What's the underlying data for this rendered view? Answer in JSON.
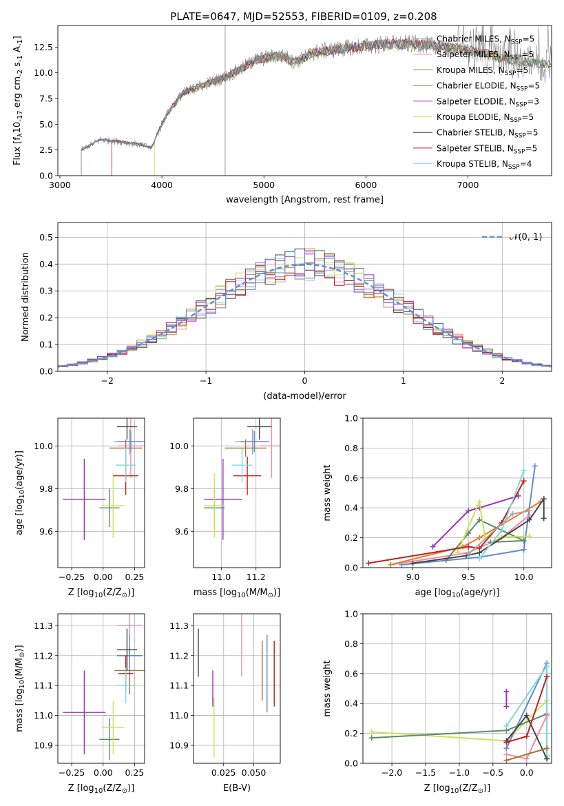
{
  "title": "PLATE=0647, MJD=52553, FIBERID=0109, z=0.208",
  "legend_models": [
    {
      "prefix": "Chabrier MILES, N",
      "n": "5",
      "color": "#a6a6a6"
    },
    {
      "prefix": "Salpeter MILES, N",
      "n": "5",
      "color": "#f48aa5"
    },
    {
      "prefix": "Kroupa MILES, N",
      "n": "5",
      "color": "#a8702a"
    },
    {
      "prefix": "Chabrier ELODIE, N",
      "n": "5",
      "color": "#5e8a66"
    },
    {
      "prefix": "Salpeter ELODIE, N",
      "n": "3",
      "color": "#9a2fc0"
    },
    {
      "prefix": "Kroupa ELODIE, N",
      "n": "5",
      "color": "#c8e455"
    },
    {
      "prefix": "Chabrier STELIB, N",
      "n": "5",
      "color": "#444444"
    },
    {
      "prefix": "Salpeter STELIB, N",
      "n": "5",
      "color": "#c02020"
    },
    {
      "prefix": "Kroupa STELIB, N",
      "n": "4",
      "color": "#7fd8e0"
    }
  ],
  "legend_sub": "SSP",
  "colors": {
    "data": "#808080",
    "blue": "#5f87d8",
    "orange": "#e8792a",
    "normal": "#5f8fd8",
    "grid": "#b0b0b0"
  },
  "chart_data": [
    {
      "id": "spectrum",
      "type": "line",
      "xlabel": "wavelength [Angstrom, rest frame]",
      "ylabel_parts": [
        "Flux [f",
        "λ",
        "10",
        "-17",
        " erg cm",
        "-2",
        " s",
        "-1",
        " A",
        "-1",
        "]"
      ],
      "xlim": [
        2980,
        7820
      ],
      "ylim": [
        0,
        14.6
      ],
      "xticks": [
        3000,
        4000,
        5000,
        6000,
        7000
      ],
      "yticks": [
        0.0,
        2.5,
        5.0,
        7.5,
        10.0,
        12.5
      ],
      "ytick_labels": [
        "0.0",
        "2.5",
        "5.0",
        "7.5",
        "10.0",
        "12.5"
      ],
      "continuum": [
        [
          3210,
          2.5
        ],
        [
          3400,
          3.5
        ],
        [
          3600,
          3.3
        ],
        [
          3800,
          3.0
        ],
        [
          3900,
          2.7
        ],
        [
          3960,
          4.2
        ],
        [
          4050,
          6.0
        ],
        [
          4200,
          8.0
        ],
        [
          4400,
          8.8
        ],
        [
          4600,
          9.5
        ],
        [
          4800,
          10.5
        ],
        [
          4900,
          11.2
        ],
        [
          5000,
          11.4
        ],
        [
          5100,
          11.6
        ],
        [
          5200,
          11.6
        ],
        [
          5300,
          11.0
        ],
        [
          5500,
          12.0
        ],
        [
          5800,
          12.4
        ],
        [
          6000,
          12.6
        ],
        [
          6200,
          12.8
        ],
        [
          6500,
          12.8
        ],
        [
          6800,
          12.5
        ],
        [
          7000,
          12.2
        ],
        [
          7200,
          11.8
        ],
        [
          7400,
          11.2
        ],
        [
          7800,
          10.8
        ]
      ],
      "model_starts": [
        3210,
        3510,
        3210,
        3210,
        3210,
        3930,
        3210,
        3510,
        3210
      ],
      "model_ends": [
        7820,
        7820,
        7820,
        7820,
        6780,
        7820,
        7820,
        7420,
        7820
      ]
    },
    {
      "id": "residual_histogram",
      "type": "histogram",
      "xlabel": "(data-model)/error",
      "ylabel": "Normed distribution",
      "xlim": [
        -2.5,
        2.5
      ],
      "ylim": [
        0,
        0.555
      ],
      "xticks": [
        -2,
        -1,
        0,
        1,
        2
      ],
      "xtick_labels": [
        "−2",
        "−1",
        "0",
        "1",
        "2"
      ],
      "yticks": [
        0.0,
        0.1,
        0.2,
        0.3,
        0.4,
        0.5
      ],
      "ytick_labels": [
        "0.0",
        "0.1",
        "0.2",
        "0.3",
        "0.4",
        "0.5"
      ],
      "legend": "𝒩(0, 1)",
      "series_names_from_legend": true
    },
    {
      "id": "Z_age",
      "type": "errorbar",
      "xlabel_parts": [
        "Z [log",
        "10",
        "(Z/Z",
        "⊙",
        ")]"
      ],
      "ylabel_parts": [
        "age  [log",
        "10",
        "(age/yr)]"
      ],
      "xlim": [
        -0.36,
        0.33
      ],
      "ylim": [
        9.43,
        10.13
      ],
      "xticks": [
        -0.25,
        0.0,
        0.25
      ],
      "xtick_labels": [
        "−0.25",
        "0.00",
        "0.25"
      ],
      "yticks": [
        9.6,
        9.8,
        10.0
      ],
      "ytick_labels": [
        "9.6",
        "9.8",
        "10.0"
      ],
      "points": [
        {
          "x": 0.21,
          "xerr": 0.12,
          "y": 10.02,
          "yerr": 0.06,
          "c": 0
        },
        {
          "x": 0.22,
          "xerr": 0.1,
          "y": 10.0,
          "yerr": 0.15,
          "c": 1
        },
        {
          "x": 0.18,
          "xerr": 0.13,
          "y": 9.99,
          "yerr": 0.04,
          "c": 2
        },
        {
          "x": 0.05,
          "xerr": 0.08,
          "y": 9.71,
          "yerr": 0.09,
          "c": 3
        },
        {
          "x": -0.15,
          "xerr": 0.17,
          "y": 9.75,
          "yerr": 0.19,
          "c": 4
        },
        {
          "x": 0.08,
          "xerr": 0.09,
          "y": 9.72,
          "yerr": 0.15,
          "c": 5
        },
        {
          "x": 0.19,
          "xerr": 0.08,
          "y": 10.09,
          "yerr": 0.06,
          "c": 6
        },
        {
          "x": 0.18,
          "xerr": 0.1,
          "y": 9.86,
          "yerr": 0.09,
          "c": 7
        },
        {
          "x": 0.18,
          "xerr": 0.08,
          "y": 9.91,
          "yerr": 0.08,
          "c": 8
        },
        {
          "x": 0.22,
          "xerr": 0.1,
          "y": 10.02,
          "yerr": 0.05,
          "c": 9
        }
      ]
    },
    {
      "id": "mass_age",
      "type": "errorbar",
      "xlabel_parts": [
        "mass [log",
        "10",
        "(M/M",
        "⊙",
        ")]"
      ],
      "xlim": [
        10.84,
        11.34
      ],
      "ylim": [
        9.43,
        10.13
      ],
      "xticks": [
        11.0,
        11.2
      ],
      "xtick_labels": [
        "11.0",
        "11.2"
      ],
      "yticks": [
        9.6,
        9.8,
        10.0
      ],
      "ytick_labels": [
        "9.6",
        "9.8",
        "10.0"
      ],
      "points": [
        {
          "x": 11.18,
          "xerr": 0.1,
          "y": 10.02,
          "yerr": 0.06,
          "c": 0
        },
        {
          "x": 11.29,
          "xerr": 0.07,
          "y": 10.0,
          "yerr": 0.15,
          "c": 1
        },
        {
          "x": 11.14,
          "xerr": 0.12,
          "y": 9.99,
          "yerr": 0.04,
          "c": 2
        },
        {
          "x": 10.96,
          "xerr": 0.06,
          "y": 9.71,
          "yerr": 0.09,
          "c": 3
        },
        {
          "x": 11.01,
          "xerr": 0.11,
          "y": 9.75,
          "yerr": 0.19,
          "c": 4
        },
        {
          "x": 10.96,
          "xerr": 0.06,
          "y": 9.72,
          "yerr": 0.15,
          "c": 5
        },
        {
          "x": 11.22,
          "xerr": 0.07,
          "y": 10.09,
          "yerr": 0.06,
          "c": 6
        },
        {
          "x": 11.15,
          "xerr": 0.08,
          "y": 9.86,
          "yerr": 0.09,
          "c": 7
        },
        {
          "x": 11.12,
          "xerr": 0.06,
          "y": 9.91,
          "yerr": 0.08,
          "c": 8
        },
        {
          "x": 11.19,
          "xerr": 0.08,
          "y": 10.02,
          "yerr": 0.05,
          "c": 9
        }
      ]
    },
    {
      "id": "age_weight",
      "type": "line",
      "xlabel_parts": [
        "age  [log",
        "10",
        "(age/yr)]"
      ],
      "ylabel": "mass weight",
      "xlim": [
        8.55,
        10.25
      ],
      "ylim": [
        0,
        1.0
      ],
      "xticks": [
        9.0,
        9.5,
        10.0
      ],
      "xtick_labels": [
        "9.0",
        "9.5",
        "10.0"
      ],
      "yticks": [
        0.0,
        0.2,
        0.4,
        0.6,
        0.8,
        1.0
      ],
      "ytick_labels": [
        "0.0",
        "0.2",
        "0.4",
        "0.6",
        "0.8",
        "1.0"
      ],
      "series": [
        {
          "c": 9,
          "pts": [
            [
              8.9,
              0.02
            ],
            [
              9.6,
              0.07
            ],
            [
              10.0,
              0.12
            ],
            [
              10.1,
              0.68
            ]
          ]
        },
        {
          "c": 1,
          "pts": [
            [
              8.8,
              0.02
            ],
            [
              9.5,
              0.1
            ],
            [
              9.8,
              0.2
            ],
            [
              10.05,
              0.35
            ]
          ]
        },
        {
          "c": 10,
          "pts": [
            [
              8.8,
              0.02
            ],
            [
              9.45,
              0.14
            ],
            [
              9.6,
              0.2
            ],
            [
              10.15,
              0.44
            ]
          ]
        },
        {
          "c": 3,
          "pts": [
            [
              9.3,
              0.05
            ],
            [
              9.5,
              0.23
            ],
            [
              9.6,
              0.32
            ],
            [
              10.0,
              0.18
            ],
            [
              9.7,
              0.17
            ]
          ]
        },
        {
          "c": 4,
          "pts": [
            [
              9.18,
              0.14
            ],
            [
              9.5,
              0.38
            ],
            [
              9.6,
              0.4
            ],
            [
              9.95,
              0.48
            ]
          ]
        },
        {
          "c": 5,
          "pts": [
            [
              9.4,
              0.1
            ],
            [
              9.6,
              0.44
            ],
            [
              9.65,
              0.2
            ],
            [
              10.05,
              0.21
            ]
          ]
        },
        {
          "c": 6,
          "pts": [
            [
              9.0,
              0.03
            ],
            [
              9.48,
              0.08
            ],
            [
              9.6,
              0.1
            ],
            [
              10.05,
              0.32
            ],
            [
              10.18,
              0.46
            ],
            [
              10.18,
              0.33
            ]
          ]
        },
        {
          "c": 7,
          "pts": [
            [
              8.6,
              0.03
            ],
            [
              9.5,
              0.14
            ],
            [
              9.6,
              0.13
            ],
            [
              9.8,
              0.3
            ],
            [
              10.0,
              0.58
            ]
          ]
        },
        {
          "c": 8,
          "pts": [
            [
              9.6,
              0.06
            ],
            [
              9.8,
              0.25
            ],
            [
              10.0,
              0.65
            ]
          ]
        },
        {
          "c": 0,
          "pts": [
            [
              9.5,
              0.09
            ],
            [
              9.9,
              0.36
            ],
            [
              10.05,
              0.38
            ]
          ]
        }
      ]
    },
    {
      "id": "Z_mass",
      "type": "errorbar",
      "xlabel_parts": [
        "Z [log",
        "10",
        "(Z/Z",
        "⊙",
        ")]"
      ],
      "ylabel_parts": [
        "mass [log",
        "10",
        "(M/M",
        "⊙",
        ")]"
      ],
      "xlim": [
        -0.36,
        0.33
      ],
      "ylim": [
        10.84,
        11.34
      ],
      "xticks": [
        -0.25,
        0.0,
        0.25
      ],
      "xtick_labels": [
        "−0.25",
        "0.00",
        "0.25"
      ],
      "yticks": [
        10.9,
        11.0,
        11.1,
        11.2,
        11.3
      ],
      "ytick_labels": [
        "10.9",
        "11.0",
        "11.1",
        "11.2",
        "11.3"
      ],
      "points": [
        {
          "x": 0.21,
          "xerr": 0.1,
          "y": 11.3,
          "yerr": 0.05,
          "c": 1
        },
        {
          "x": 0.21,
          "xerr": 0.12,
          "y": 11.15,
          "yerr": 0.08,
          "c": 2
        },
        {
          "x": 0.21,
          "xerr": 0.1,
          "y": 11.2,
          "yerr": 0.07,
          "c": 9
        },
        {
          "x": 0.05,
          "xerr": 0.08,
          "y": 10.92,
          "yerr": 0.07,
          "c": 3
        },
        {
          "x": -0.15,
          "xerr": 0.17,
          "y": 11.01,
          "yerr": 0.14,
          "c": 4
        },
        {
          "x": 0.08,
          "xerr": 0.09,
          "y": 10.96,
          "yerr": 0.09,
          "c": 5
        },
        {
          "x": 0.19,
          "xerr": 0.08,
          "y": 11.22,
          "yerr": 0.07,
          "c": 6
        },
        {
          "x": 0.18,
          "xerr": 0.06,
          "y": 11.14,
          "yerr": 0.06,
          "c": 7
        },
        {
          "x": 0.18,
          "xerr": 0.07,
          "y": 11.1,
          "yerr": 0.06,
          "c": 8
        }
      ]
    },
    {
      "id": "ebv_mass",
      "type": "errorbar",
      "xlabel": "E(B-V)",
      "xlim": [
        0.0,
        0.072
      ],
      "ylim": [
        10.84,
        11.34
      ],
      "xticks": [
        0.025,
        0.05
      ],
      "xtick_labels": [
        "0.025",
        "0.050"
      ],
      "yticks": [
        10.9,
        11.0,
        11.1,
        11.2,
        11.3
      ],
      "ytick_labels": [
        "10.9",
        "11.0",
        "11.1",
        "11.2",
        "11.3"
      ],
      "points": [
        {
          "x": 0.004,
          "xerr": 0,
          "y": 11.21,
          "yerr": 0.08,
          "c": 6
        },
        {
          "x": 0.016,
          "xerr": 0,
          "y": 11.09,
          "yerr": 0.06,
          "c": 4
        },
        {
          "x": 0.017,
          "xerr": 0,
          "y": 10.96,
          "yerr": 0.1,
          "c": 5
        },
        {
          "x": 0.04,
          "xerr": 0,
          "y": 11.24,
          "yerr": 0.11,
          "c": 1
        },
        {
          "x": 0.057,
          "xerr": 0,
          "y": 11.15,
          "yerr": 0.1,
          "c": 2
        },
        {
          "x": 0.061,
          "xerr": 0,
          "y": 11.14,
          "yerr": 0.13,
          "c": 9
        },
        {
          "x": 0.067,
          "xerr": 0,
          "y": 11.14,
          "yerr": 0.11,
          "c": 7
        }
      ]
    },
    {
      "id": "Z_weight",
      "type": "line",
      "xlabel_parts": [
        "Z [log",
        "10",
        "(Z/Z",
        "⊙",
        ")]"
      ],
      "ylabel": "mass weight",
      "xlim": [
        -2.43,
        0.37
      ],
      "ylim": [
        0,
        1.0
      ],
      "xticks": [
        -2.0,
        -1.5,
        -1.0,
        -0.5,
        0.0
      ],
      "xtick_labels": [
        "−2.0",
        "−1.5",
        "−1.0",
        "−0.5",
        "0.0"
      ],
      "yticks": [
        0.0,
        0.2,
        0.4,
        0.6,
        0.8,
        1.0
      ],
      "ytick_labels": [
        "0.0",
        "0.2",
        "0.4",
        "0.6",
        "0.8",
        "1.0"
      ],
      "series": [
        {
          "c": 5,
          "pts": [
            [
              -2.3,
              0.21
            ],
            [
              -0.3,
              0.15
            ],
            [
              0.3,
              0.42
            ]
          ]
        },
        {
          "c": 3,
          "pts": [
            [
              -2.3,
              0.17
            ],
            [
              -0.3,
              0.22
            ],
            [
              0.3,
              0.33
            ]
          ]
        },
        {
          "c": 4,
          "pts": [
            [
              -0.3,
              0.48
            ],
            [
              -0.3,
              0.38
            ]
          ]
        },
        {
          "c": 9,
          "pts": [
            [
              -0.3,
              0.1
            ],
            [
              0.3,
              0.67
            ],
            [
              0.3,
              0.03
            ]
          ]
        },
        {
          "c": 8,
          "pts": [
            [
              -0.3,
              0.25
            ],
            [
              0.3,
              0.65
            ],
            [
              0.3,
              0.05
            ]
          ]
        },
        {
          "c": 1,
          "pts": [
            [
              -0.3,
              0.06
            ],
            [
              0.0,
              0.03
            ],
            [
              0.3,
              0.32
            ]
          ]
        },
        {
          "c": 6,
          "pts": [
            [
              -0.3,
              0.15
            ],
            [
              0.0,
              0.32
            ],
            [
              0.3,
              0.03
            ]
          ]
        },
        {
          "c": 7,
          "pts": [
            [
              -0.3,
              0.14
            ],
            [
              0.0,
              0.18
            ],
            [
              0.3,
              0.58
            ]
          ]
        },
        {
          "c": 2,
          "pts": [
            [
              -0.3,
              0.02
            ],
            [
              0.3,
              0.1
            ]
          ]
        }
      ]
    }
  ]
}
